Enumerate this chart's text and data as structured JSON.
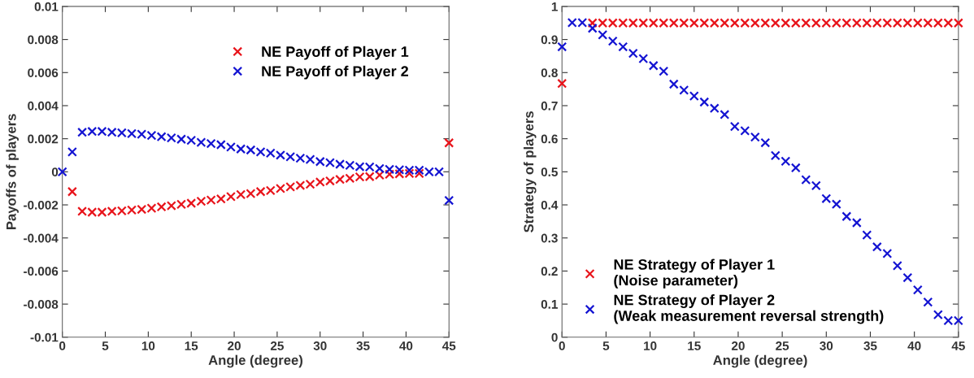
{
  "chart_data": [
    {
      "type": "scatter",
      "xlabel": "Angle (degree)",
      "ylabel": "Payoffs of players",
      "marker": "cross",
      "legend": "top right",
      "grid": false,
      "x": [
        0,
        1.154,
        2.308,
        3.462,
        4.615,
        5.769,
        6.923,
        8.077,
        9.231,
        10.385,
        11.538,
        12.692,
        13.846,
        15,
        16.154,
        17.308,
        18.462,
        19.615,
        20.769,
        21.923,
        23.077,
        24.231,
        25.385,
        26.538,
        27.692,
        28.846,
        30,
        31.154,
        32.308,
        33.462,
        34.615,
        35.769,
        36.923,
        38.077,
        39.231,
        40.385,
        41.538,
        42.692,
        43.846,
        45
      ],
      "series": [
        {
          "name": "NE Payoff of Player 1",
          "color": "#e8141b",
          "values": [
            null,
            -0.0012,
            -0.00239,
            -0.00244,
            -0.00244,
            -0.00239,
            -0.00236,
            -0.00231,
            -0.00227,
            -0.0022,
            -0.00212,
            -0.00205,
            -0.00197,
            -0.0019,
            -0.00178,
            -0.00171,
            -0.00164,
            -0.0015,
            -0.00138,
            -0.00132,
            -0.0012,
            -0.00113,
            -0.00101,
            -0.00091,
            -0.00082,
            -0.00075,
            -0.00062,
            -0.00055,
            -0.00046,
            -0.00039,
            -0.00031,
            -0.00029,
            -0.0002,
            -0.00015,
            -0.00012,
            -0.0001,
            -0.0001,
            null,
            null,
            0.00175
          ]
        },
        {
          "name": "NE Payoff of Player 2",
          "color": "#1414d2",
          "values": [
            0,
            0.0012,
            0.00239,
            0.00244,
            0.00244,
            0.00239,
            0.00236,
            0.00231,
            0.00227,
            0.0022,
            0.00212,
            0.00205,
            0.00197,
            0.0019,
            0.00178,
            0.00171,
            0.00164,
            0.0015,
            0.00138,
            0.00132,
            0.0012,
            0.00113,
            0.00101,
            0.00091,
            0.00082,
            0.00075,
            0.00062,
            0.00055,
            0.00046,
            0.00039,
            0.00031,
            0.00029,
            0.0002,
            0.00015,
            0.00012,
            0.0001,
            0.0001,
            0,
            0,
            -0.00173
          ]
        }
      ],
      "xlim": [
        0,
        45
      ],
      "xticks": [
        0,
        5,
        10,
        15,
        20,
        25,
        30,
        35,
        40,
        45
      ],
      "ylim": [
        -0.01,
        0.01
      ],
      "yticks": [
        -0.01,
        -0.008,
        -0.006,
        -0.004,
        -0.002,
        0,
        0.002,
        0.004,
        0.006,
        0.008,
        0.01
      ]
    },
    {
      "type": "scatter",
      "xlabel": "Angle (degree)",
      "ylabel": "Strategy of players",
      "marker": "cross",
      "legend": "bottom left",
      "grid": false,
      "x": [
        0,
        1.154,
        2.308,
        3.462,
        4.615,
        5.769,
        6.923,
        8.077,
        9.231,
        10.385,
        11.538,
        12.692,
        13.846,
        15,
        16.154,
        17.308,
        18.462,
        19.615,
        20.769,
        21.923,
        23.077,
        24.231,
        25.385,
        26.538,
        27.692,
        28.846,
        30,
        31.154,
        32.308,
        33.462,
        34.615,
        35.769,
        36.923,
        38.077,
        39.231,
        40.385,
        41.538,
        42.692,
        43.846,
        45
      ],
      "series": [
        {
          "name": "NE Strategy of Player 1\n(Noise parameter)",
          "color": "#e8141b",
          "values": [
            0.767,
            null,
            null,
            0.95,
            0.95,
            0.95,
            0.95,
            0.95,
            0.95,
            0.95,
            0.95,
            0.95,
            0.95,
            0.95,
            0.95,
            0.95,
            0.95,
            0.95,
            0.95,
            0.95,
            0.95,
            0.95,
            0.95,
            0.95,
            0.95,
            0.95,
            0.95,
            0.95,
            0.95,
            0.95,
            0.95,
            0.95,
            0.95,
            0.95,
            0.95,
            0.95,
            0.95,
            0.95,
            0.95,
            0.95
          ]
        },
        {
          "name": "NE Strategy of Player 2\n(Weak measurement reversal strength)",
          "color": "#1414d2",
          "values": [
            0.878,
            0.951,
            0.951,
            0.934,
            0.914,
            0.895,
            0.878,
            0.858,
            0.842,
            0.821,
            0.804,
            0.765,
            0.747,
            0.729,
            0.711,
            0.692,
            0.673,
            0.637,
            0.624,
            0.605,
            0.588,
            0.549,
            0.532,
            0.512,
            0.476,
            0.458,
            0.419,
            0.402,
            0.365,
            0.346,
            0.309,
            0.273,
            0.253,
            0.216,
            0.18,
            0.143,
            0.106,
            0.068,
            0.05,
            0.05
          ]
        }
      ],
      "xlim": [
        0,
        45
      ],
      "xticks": [
        0,
        5,
        10,
        15,
        20,
        25,
        30,
        35,
        40,
        45
      ],
      "ylim": [
        0,
        1
      ],
      "yticks": [
        0,
        0.1,
        0.2,
        0.3,
        0.4,
        0.5,
        0.6,
        0.7,
        0.8,
        0.9,
        1
      ]
    }
  ]
}
